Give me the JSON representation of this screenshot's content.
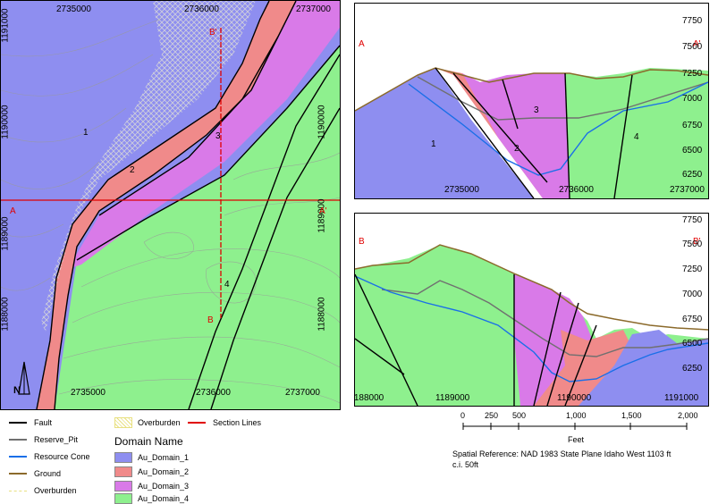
{
  "colors": {
    "domain_1": "#8888ee",
    "domain_2": "#f08888",
    "domain_3": "#dd77ee",
    "domain_4": "#88ee88",
    "fault": "#000000",
    "reserve_pit": "#707070",
    "resource_cone": "#1a6fe8",
    "ground": "#8b6a2b",
    "overburden": "#e8e080",
    "section_lines": "#e00000"
  },
  "map": {
    "top_ticks": [
      "2735000",
      "2736000",
      "2737000"
    ],
    "bottom_ticks": [
      "2735000",
      "2736000",
      "2737000"
    ],
    "left_ticks": [
      "1191000",
      "1190000",
      "1189000",
      "1188000"
    ],
    "right_ticks": [
      "1190000",
      "1189000",
      "1188000"
    ],
    "section_labels": {
      "a": "A",
      "a_prime": "A'",
      "b": "B",
      "b_prime": "B'"
    },
    "domain_labels": [
      "1",
      "2",
      "3",
      "4"
    ],
    "north_label": "N"
  },
  "section_a": {
    "left_label": "A",
    "right_label": "A'",
    "elevations": [
      "7750",
      "7500",
      "7250",
      "7000",
      "6750",
      "6500",
      "6250"
    ],
    "x_ticks": [
      "2735000",
      "2736000",
      "2737000"
    ],
    "domain_labels": [
      "1",
      "2",
      "3",
      "4"
    ]
  },
  "section_b": {
    "left_label": "B",
    "right_label": "B'",
    "elevations": [
      "7750",
      "7500",
      "7250",
      "7000",
      "6750",
      "6500",
      "6250"
    ],
    "x_ticks": [
      "1188000",
      "1189000",
      "1190000",
      "1191000"
    ]
  },
  "scale_bar": {
    "ticks": [
      "0",
      "250",
      "500",
      "1,000",
      "1,500",
      "2,000"
    ],
    "unit": "Feet"
  },
  "spatial_reference": "Spatial Reference: NAD 1983 State Plane Idaho West 1103 ft",
  "contour_interval": "c.i. 50ft",
  "legend": {
    "lines": [
      "Fault",
      "Reserve_Pit",
      "Resource Cone",
      "Ground",
      "Overburden"
    ],
    "overburden_pattern": "Overburden",
    "section_lines": "Section Lines",
    "domain_title": "Domain Name",
    "domains": [
      "Au_Domain_1",
      "Au_Domain_2",
      "Au_Domain_3",
      "Au_Domain_4"
    ]
  }
}
